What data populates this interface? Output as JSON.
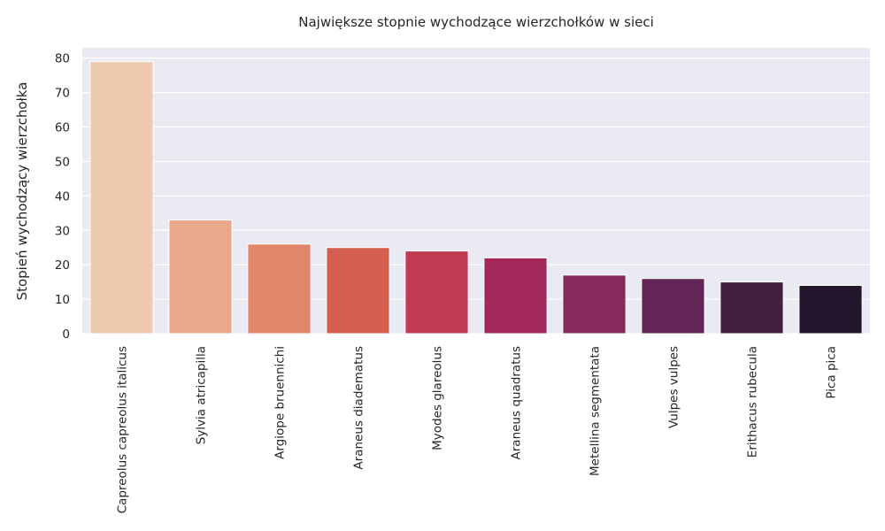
{
  "chart_data": {
    "type": "bar",
    "title": "Największe stopnie wychodzące wierzchołków w sieci",
    "xlabel": "",
    "ylabel": "Stopień wychodzący wierzchołka",
    "ylim": [
      0,
      83
    ],
    "yticks": [
      0,
      10,
      20,
      30,
      40,
      50,
      60,
      70,
      80
    ],
    "grid": true,
    "categories": [
      "Capreolus capreolus italicus",
      "Sylvia atricapilla",
      "Argiope bruennichi",
      "Araneus diadematus",
      "Myodes glareolus",
      "Araneus quadratus",
      "Metellina segmentata",
      "Vulpes vulpes",
      "Erithacus rubecula",
      "Pica pica"
    ],
    "values": [
      79,
      33,
      26,
      25,
      24,
      22,
      17,
      16,
      15,
      14
    ],
    "colors": [
      "#edc9b0",
      "#e8a98a",
      "#e1866a",
      "#d6604f",
      "#c23a51",
      "#a4295a",
      "#852a5b",
      "#632556",
      "#451f42",
      "#23172e"
    ],
    "background": "#eaeaf2",
    "gridcolor": "#ffffff"
  }
}
